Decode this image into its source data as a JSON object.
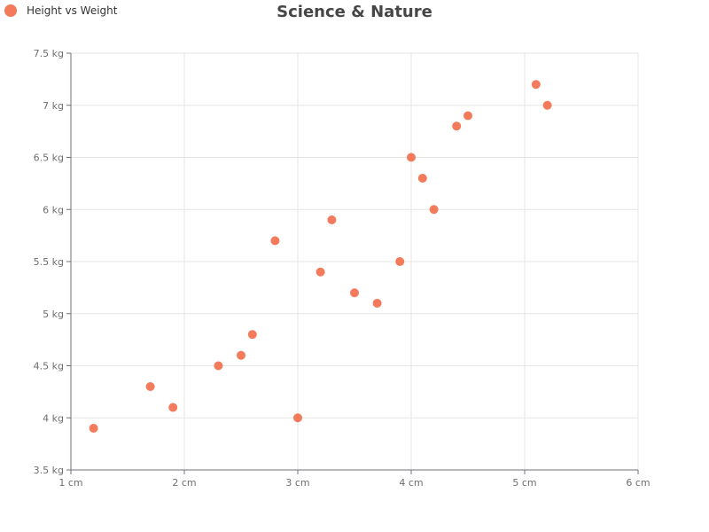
{
  "chart_data": {
    "type": "scatter",
    "title": "Science & Nature",
    "xlabel": "",
    "ylabel": "",
    "xlim": [
      1,
      6
    ],
    "ylim": [
      3.5,
      7.5
    ],
    "x_ticks": [
      1,
      2,
      3,
      4,
      5,
      6
    ],
    "y_ticks": [
      3.5,
      4,
      4.5,
      5,
      5.5,
      6,
      6.5,
      7,
      7.5
    ],
    "x_unit": "cm",
    "y_unit": "kg",
    "grid": true,
    "legend_position": "top-left",
    "series": [
      {
        "name": "Height vs Weight",
        "color": "#f47a5c",
        "points": [
          [
            1.2,
            3.9
          ],
          [
            1.7,
            4.3
          ],
          [
            1.9,
            4.1
          ],
          [
            2.3,
            4.5
          ],
          [
            2.5,
            4.6
          ],
          [
            2.6,
            4.8
          ],
          [
            2.8,
            5.7
          ],
          [
            3.0,
            4.0
          ],
          [
            3.2,
            5.4
          ],
          [
            3.3,
            5.9
          ],
          [
            3.5,
            5.2
          ],
          [
            3.7,
            5.1
          ],
          [
            3.9,
            5.5
          ],
          [
            4.0,
            6.5
          ],
          [
            4.1,
            6.3
          ],
          [
            4.2,
            6.0
          ],
          [
            4.4,
            6.8
          ],
          [
            4.5,
            6.9
          ],
          [
            5.1,
            7.2
          ],
          [
            5.2,
            7.0
          ]
        ]
      }
    ]
  }
}
